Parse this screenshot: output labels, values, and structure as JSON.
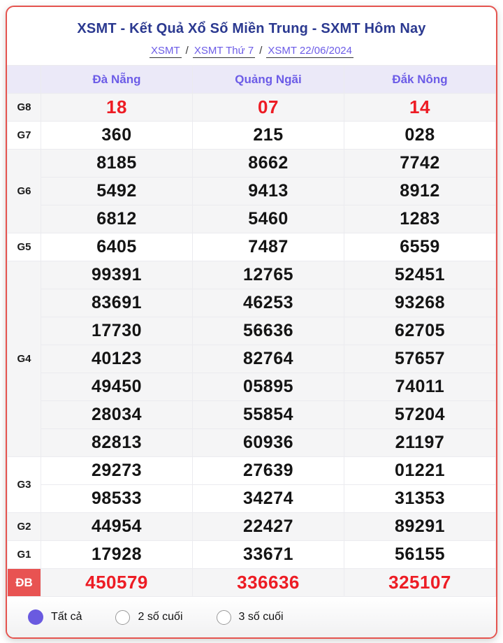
{
  "colors": {
    "card_border": "#e5544f",
    "title_text": "#2b3990",
    "link_text": "#6c5ce7",
    "header_bg": "#ebe9f8",
    "shaded_row_bg": "#f5f5f6",
    "highlight_number": "#ed1c24",
    "db_label_bg": "#e85352",
    "radio_selected": "#6a5ae0"
  },
  "header": {
    "title": "XSMT - Kết Quả Xổ Số Miền Trung - SXMT Hôm Nay",
    "breadcrumb": {
      "separator": "/",
      "items": [
        {
          "label": "XSMT"
        },
        {
          "label": "XSMT Thứ 7"
        },
        {
          "label": "XSMT 22/06/2024"
        }
      ]
    }
  },
  "table": {
    "columns": [
      "Đà Nẵng",
      "Quảng Ngãi",
      "Đắk Nông"
    ],
    "groups": [
      {
        "label": "G8",
        "highlight": true,
        "special": false,
        "shaded": true,
        "rows": [
          [
            "18",
            "07",
            "14"
          ]
        ]
      },
      {
        "label": "G7",
        "highlight": false,
        "special": false,
        "shaded": false,
        "rows": [
          [
            "360",
            "215",
            "028"
          ]
        ]
      },
      {
        "label": "G6",
        "highlight": false,
        "special": false,
        "shaded": true,
        "rows": [
          [
            "8185",
            "8662",
            "7742"
          ],
          [
            "5492",
            "9413",
            "8912"
          ],
          [
            "6812",
            "5460",
            "1283"
          ]
        ]
      },
      {
        "label": "G5",
        "highlight": false,
        "special": false,
        "shaded": false,
        "rows": [
          [
            "6405",
            "7487",
            "6559"
          ]
        ]
      },
      {
        "label": "G4",
        "highlight": false,
        "special": false,
        "shaded": true,
        "rows": [
          [
            "99391",
            "12765",
            "52451"
          ],
          [
            "83691",
            "46253",
            "93268"
          ],
          [
            "17730",
            "56636",
            "62705"
          ],
          [
            "40123",
            "82764",
            "57657"
          ],
          [
            "49450",
            "05895",
            "74011"
          ],
          [
            "28034",
            "55854",
            "57204"
          ],
          [
            "82813",
            "60936",
            "21197"
          ]
        ]
      },
      {
        "label": "G3",
        "highlight": false,
        "special": false,
        "shaded": false,
        "rows": [
          [
            "29273",
            "27639",
            "01221"
          ],
          [
            "98533",
            "34274",
            "31353"
          ]
        ]
      },
      {
        "label": "G2",
        "highlight": false,
        "special": false,
        "shaded": true,
        "rows": [
          [
            "44954",
            "22427",
            "89291"
          ]
        ]
      },
      {
        "label": "G1",
        "highlight": false,
        "special": false,
        "shaded": false,
        "rows": [
          [
            "17928",
            "33671",
            "56155"
          ]
        ]
      },
      {
        "label": "ĐB",
        "highlight": true,
        "special": true,
        "shaded": true,
        "rows": [
          [
            "450579",
            "336636",
            "325107"
          ]
        ]
      }
    ]
  },
  "footer": {
    "options": [
      {
        "label": "Tất cả",
        "selected": true
      },
      {
        "label": "2 số cuối",
        "selected": false
      },
      {
        "label": "3 số cuối",
        "selected": false
      }
    ]
  }
}
